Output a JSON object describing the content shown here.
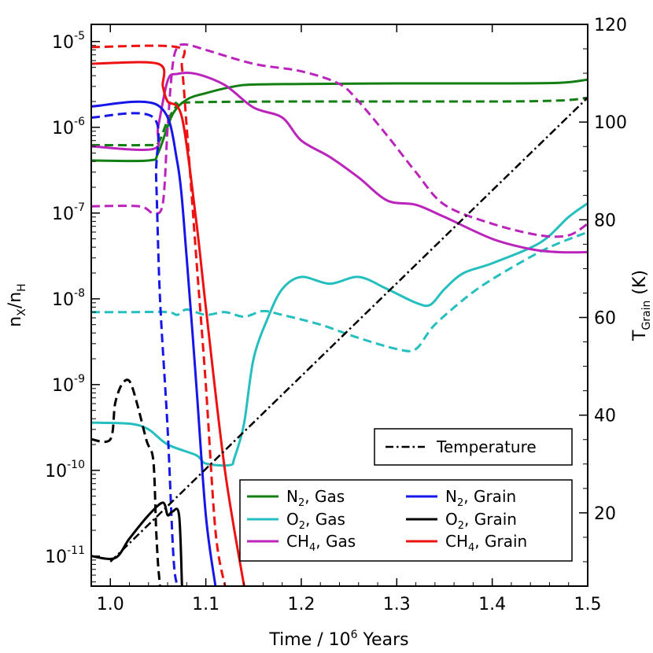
{
  "chart_data": {
    "type": "line",
    "xlabel": "Time /  10^6 Years",
    "xlabel_parts": {
      "prefix": "Time /  10",
      "sup": "6",
      "suffix": " Years"
    },
    "ylabel": "n_X/n_H",
    "ylabel_parts": {
      "n": "n",
      "sub1": "X",
      "slash": "/n",
      "sub2": "H"
    },
    "y2label": "T_Grain (K)",
    "y2label_parts": {
      "T": "T",
      "sub": "Grain",
      "suffix": " (K)"
    },
    "xlim": [
      0.98,
      1.5
    ],
    "ylim_log10": [
      -11.35,
      -4.8
    ],
    "y2lim": [
      5,
      120
    ],
    "x_ticks": [
      1.0,
      1.1,
      1.2,
      1.3,
      1.4,
      1.5
    ],
    "x_tick_labels": [
      "1.0",
      "1.1",
      "1.2",
      "1.3",
      "1.4",
      "1.5"
    ],
    "y_ticks_exp": [
      -11,
      -10,
      -9,
      -8,
      -7,
      -6,
      -5
    ],
    "y_tick_base": "10",
    "y_tick_exponents": [
      "-11",
      "-10",
      "-9",
      "-8",
      "-7",
      "-6",
      "-5"
    ],
    "y2_ticks": [
      20,
      40,
      60,
      80,
      100,
      120
    ],
    "y2_tick_labels": [
      "20",
      "40",
      "60",
      "80",
      "100",
      "120"
    ],
    "colors": {
      "n2": "#137f13",
      "o2": "#25bfbf",
      "ch4": "#bb24bb",
      "n2_grain": "#1616e9",
      "o2_grain": "#000000",
      "ch4_grain": "#ee1111",
      "temperature": "#000000"
    },
    "legend_temperature": {
      "label": "Temperature",
      "style": "dashdot",
      "location": "right"
    },
    "legend_species": {
      "location": "lower-right",
      "entries": [
        {
          "species": "N",
          "sub": "2",
          "suffix": ", Gas",
          "color": "#137f13"
        },
        {
          "species": "O",
          "sub": "2",
          "suffix": ", Gas",
          "color": "#25bfbf"
        },
        {
          "species": "CH",
          "sub": "4",
          "suffix": ", Gas",
          "color": "#bb24bb"
        },
        {
          "species": "N",
          "sub": "2",
          "suffix": ", Grain",
          "color": "#1616e9"
        },
        {
          "species": "O",
          "sub": "2",
          "suffix": ", Grain",
          "color": "#000000"
        },
        {
          "species": "CH",
          "sub": "4",
          "suffix": ", Grain",
          "color": "#ee1111"
        }
      ]
    },
    "series": [
      {
        "name": "N2, Gas (solid)",
        "color": "#137f13",
        "dash": "solid",
        "axis": "left",
        "x": [
          0.98,
          1.04,
          1.05,
          1.065,
          1.08,
          1.1,
          1.13,
          1.15,
          1.2,
          1.3,
          1.4,
          1.47,
          1.5
        ],
        "y": [
          4.1e-07,
          4.1e-07,
          5e-07,
          1.4e-06,
          2.1e-06,
          2.5e-06,
          3e-06,
          3.15e-06,
          3.2e-06,
          3.25e-06,
          3.25e-06,
          3.3e-06,
          3.6e-06
        ]
      },
      {
        "name": "N2, Gas (dashed)",
        "color": "#137f13",
        "dash": "dashed",
        "axis": "left",
        "x": [
          0.98,
          1.04,
          1.05,
          1.06,
          1.07,
          1.08,
          1.2,
          1.4,
          1.47,
          1.5
        ],
        "y": [
          6.2e-07,
          6.2e-07,
          6.5e-07,
          1.2e-06,
          1.8e-06,
          1.95e-06,
          2e-06,
          2e-06,
          2.05e-06,
          2.2e-06
        ]
      },
      {
        "name": "O2, Gas (solid)",
        "color": "#25bfbf",
        "dash": "solid",
        "axis": "left",
        "x": [
          0.98,
          1.02,
          1.04,
          1.06,
          1.09,
          1.1,
          1.125,
          1.13,
          1.14,
          1.15,
          1.165,
          1.18,
          1.2,
          1.23,
          1.26,
          1.29,
          1.32,
          1.335,
          1.35,
          1.37,
          1.4,
          1.45,
          1.48,
          1.5
        ],
        "y": [
          3.6e-10,
          3.5e-10,
          3e-10,
          2e-10,
          1.5e-10,
          1.2e-10,
          1.15e-10,
          1.4e-10,
          3.5e-10,
          2e-09,
          6e-09,
          1.3e-08,
          1.8e-08,
          1.5e-08,
          1.8e-08,
          1.3e-08,
          9e-09,
          8.5e-09,
          1.3e-08,
          2e-08,
          2.6e-08,
          4.5e-08,
          9e-08,
          1.3e-07
        ]
      },
      {
        "name": "O2, Gas (dashed)",
        "color": "#25bfbf",
        "dash": "dashed",
        "axis": "left",
        "x": [
          0.98,
          1.02,
          1.06,
          1.07,
          1.08,
          1.1,
          1.12,
          1.14,
          1.16,
          1.18,
          1.22,
          1.26,
          1.3,
          1.32,
          1.34,
          1.38,
          1.42,
          1.46,
          1.5
        ],
        "y": [
          7e-09,
          7e-09,
          7e-09,
          6.5e-09,
          7.5e-09,
          6.5e-09,
          7e-09,
          6.2e-09,
          7.2e-09,
          6.5e-09,
          5e-09,
          3.5e-09,
          2.6e-09,
          2.6e-09,
          5e-09,
          1.2e-08,
          2.3e-08,
          4e-08,
          6e-08
        ]
      },
      {
        "name": "CH4, Gas (solid)",
        "color": "#bb24bb",
        "dash": "solid",
        "axis": "left",
        "x": [
          0.98,
          1.045,
          1.05,
          1.06,
          1.07,
          1.09,
          1.12,
          1.15,
          1.18,
          1.2,
          1.23,
          1.26,
          1.29,
          1.32,
          1.35,
          1.4,
          1.44,
          1.47,
          1.5
        ],
        "y": [
          6e-07,
          5.6e-07,
          1e-06,
          3.5e-06,
          4.2e-06,
          4.2e-06,
          3.1e-06,
          1.7e-06,
          1.3e-06,
          7e-07,
          4.5e-07,
          2.6e-07,
          1.4e-07,
          1.25e-07,
          9e-08,
          5e-08,
          3.8e-08,
          3.5e-08,
          3.5e-08
        ]
      },
      {
        "name": "CH4, Gas (dashed)",
        "color": "#bb24bb",
        "dash": "dashed",
        "axis": "left",
        "x": [
          0.98,
          1.03,
          1.045,
          1.055,
          1.06,
          1.065,
          1.07,
          1.08,
          1.1,
          1.15,
          1.2,
          1.24,
          1.26,
          1.29,
          1.32,
          1.35,
          1.4,
          1.45,
          1.48,
          1.5
        ],
        "y": [
          1.2e-07,
          1.2e-07,
          1e-07,
          1.3e-07,
          1e-06,
          5e-06,
          8.5e-06,
          9.2e-06,
          8e-06,
          5.5e-06,
          4.5e-06,
          3.2e-06,
          2e-06,
          8e-07,
          3e-07,
          1.25e-07,
          7.5e-08,
          5.5e-08,
          5.5e-08,
          7.5e-08
        ]
      },
      {
        "name": "N2, Grain (solid)",
        "color": "#1616e9",
        "dash": "solid",
        "axis": "left",
        "x": [
          0.98,
          1.05,
          1.07,
          1.08,
          1.09,
          1.1,
          1.11
        ],
        "y": [
          1.75e-06,
          1.8e-06,
          4e-07,
          3e-08,
          1e-09,
          3e-11,
          4.5e-12
        ]
      },
      {
        "name": "N2, Grain (dashed)",
        "color": "#1616e9",
        "dash": "dashed",
        "axis": "left",
        "x": [
          0.98,
          1.045,
          1.048,
          1.052,
          1.06,
          1.066,
          1.07
        ],
        "y": [
          1.3e-06,
          1.3e-06,
          2.5e-07,
          1e-08,
          3e-10,
          1e-11,
          4.5e-12
        ]
      },
      {
        "name": "O2, Grain (solid)",
        "color": "#000000",
        "dash": "solid",
        "axis": "left",
        "x": [
          0.98,
          1.005,
          1.02,
          1.04,
          1.055,
          1.06,
          1.065,
          1.072,
          1.075
        ],
        "y": [
          1e-11,
          9.5e-12,
          1.6e-11,
          3e-11,
          4.2e-11,
          3e-11,
          3.3e-11,
          3e-11,
          4.5e-12
        ]
      },
      {
        "name": "O2, Grain (dashed)",
        "color": "#000000",
        "dash": "dashed",
        "axis": "left",
        "x": [
          0.98,
          1.0,
          1.005,
          1.012,
          1.02,
          1.028,
          1.038,
          1.045,
          1.048,
          1.05,
          1.052
        ],
        "y": [
          2.3e-10,
          2.3e-10,
          6e-10,
          1e-09,
          1.1e-09,
          6e-10,
          2.2e-10,
          1.3e-10,
          2e-11,
          8e-12,
          4.5e-12
        ]
      },
      {
        "name": "CH4, Grain (solid)",
        "color": "#ee1111",
        "dash": "solid",
        "axis": "left",
        "x": [
          0.98,
          1.05,
          1.055,
          1.06,
          1.075,
          1.09,
          1.1,
          1.12,
          1.14
        ],
        "y": [
          5.5e-06,
          5.5e-06,
          3e-06,
          2e-06,
          1.3e-06,
          8e-08,
          8e-09,
          1e-10,
          4.5e-12
        ]
      },
      {
        "name": "CH4, Grain (dashed)",
        "color": "#ee1111",
        "dash": "dashed",
        "axis": "left",
        "x": [
          0.98,
          1.07,
          1.075,
          1.08,
          1.09,
          1.1,
          1.11,
          1.12
        ],
        "y": [
          8.6e-06,
          8.6e-06,
          5e-06,
          1e-06,
          3e-08,
          1e-09,
          2e-11,
          4.5e-12
        ]
      },
      {
        "name": "Temperature",
        "color": "#000000",
        "dash": "dashdot",
        "axis": "right",
        "x": [
          1.0,
          1.5
        ],
        "y": [
          10,
          105
        ]
      }
    ]
  }
}
